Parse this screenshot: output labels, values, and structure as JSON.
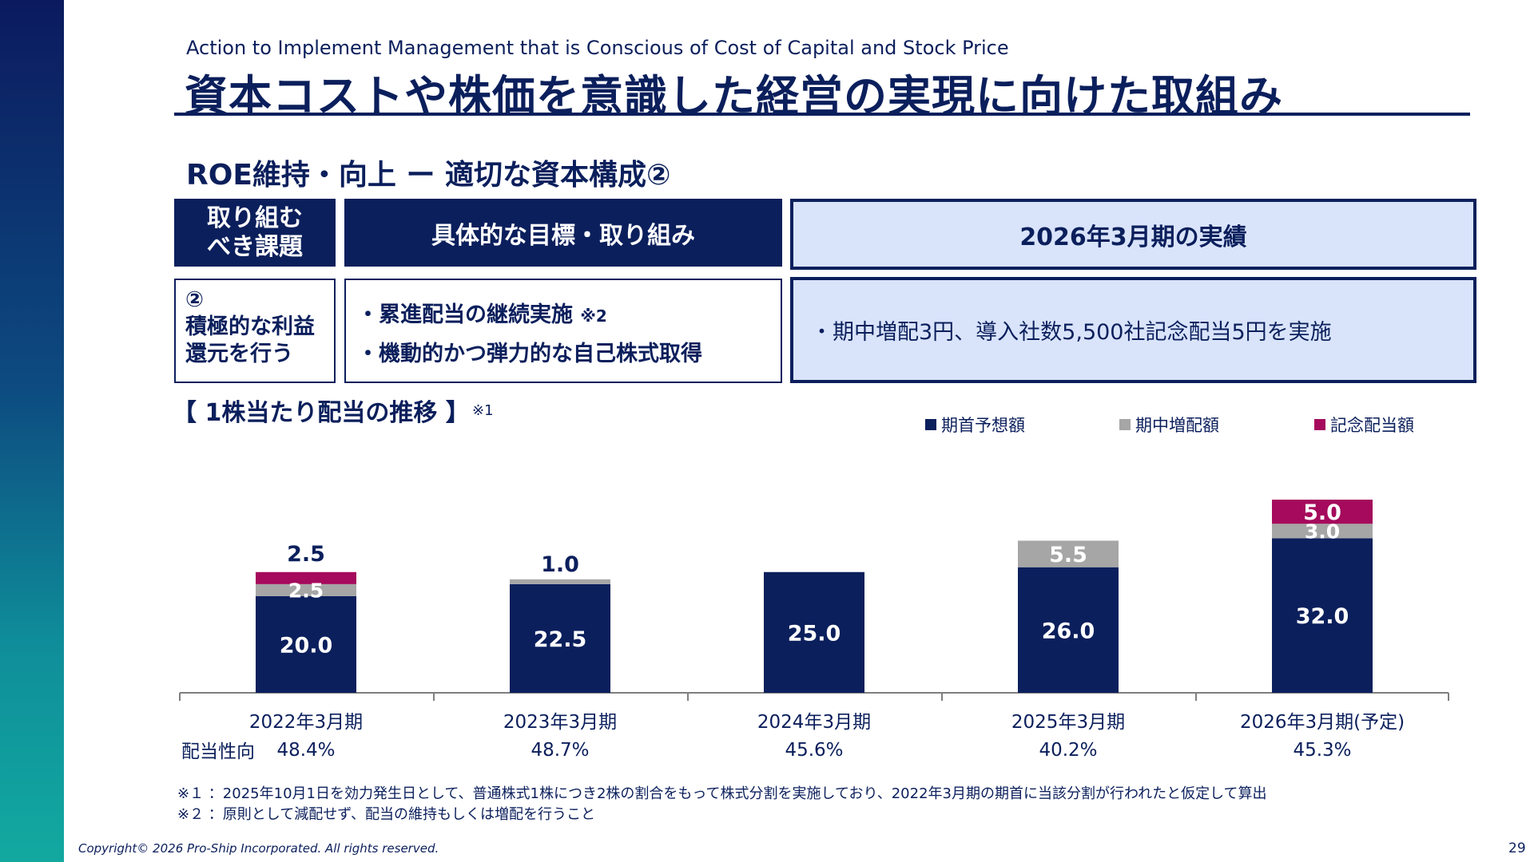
{
  "header": {
    "subtitle_en": "Action to Implement Management that is Conscious of Cost of Capital and Stock Price",
    "title": "資本コストや株価を意識した経営の実現に向けた取組み"
  },
  "section_title": "ROE維持・向上 ー 適切な資本構成②",
  "table": {
    "col1_header": [
      "取り組む",
      "べき課題"
    ],
    "col2_header": "具体的な目標・取り組み",
    "col3_header": "2026年3月期の実績",
    "row_issue": [
      "②",
      "積極的な利益",
      "還元を行う"
    ],
    "row_actions": [
      "・累進配当の継続実施",
      "・機動的かつ弾力的な自己株式取得"
    ],
    "row_actions_note": "※2",
    "row_result": "・期中増配3円、導入社数5,500社記念配当5円を実施"
  },
  "chart_title": "【 1株当たり配当の推移 】",
  "chart_note": "※1",
  "chart_data": {
    "type": "bar",
    "stacked": true,
    "categories": [
      "2022年3月期",
      "2023年3月期",
      "2024年3月期",
      "2025年3月期",
      "2026年3月期(予定)"
    ],
    "series": [
      {
        "name": "期首予想額",
        "color": "#0b1f5c",
        "values": [
          20.0,
          22.5,
          25.0,
          26.0,
          32.0
        ],
        "labels": [
          "20.0",
          "22.5",
          "25.0",
          "26.0",
          "32.0"
        ]
      },
      {
        "name": "期中増配額",
        "color": "#a6a6a6",
        "values": [
          2.5,
          1.0,
          0,
          5.5,
          3.0
        ],
        "labels": [
          "2.5",
          "1.0",
          "",
          "5.5",
          "3.0"
        ]
      },
      {
        "name": "記念配当額",
        "color": "#a50a5c",
        "values": [
          2.5,
          0,
          0,
          0,
          5.0
        ],
        "labels": [
          "2.5",
          "",
          "",
          "",
          "5.0"
        ]
      }
    ],
    "ylim": [
      0,
      40
    ]
  },
  "payout": {
    "label": "配当性向",
    "values": [
      "48.4%",
      "48.7%",
      "45.6%",
      "40.2%",
      "45.3%"
    ]
  },
  "footnotes": [
    "※１ ：2025年10月1日を効力発生日として、普通株式1株につき2株の割合をもって株式分割を実施しており、2022年3月期の期首に当該分割が行われたと仮定して算出",
    "※２ ：原則として減配せず、配当の維持もしくは増配を行うこと"
  ],
  "copyright": "Copyright© 2026 Pro-Ship Incorporated. All rights reserved.",
  "page_number": "29"
}
